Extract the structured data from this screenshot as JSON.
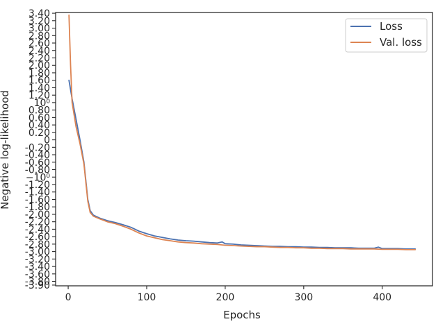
{
  "chart_data": {
    "type": "line",
    "xlabel": "Epochs",
    "ylabel": "Negative log-likelihood",
    "yscale": "symlog",
    "xlim": [
      -16,
      464
    ],
    "ylim": [
      -3.92,
      3.42
    ],
    "grid": false,
    "legend_position": "top-right",
    "x_ticks": [
      0,
      100,
      200,
      300,
      400
    ],
    "x_tick_labels": [
      "0",
      "100",
      "200",
      "300",
      "400"
    ],
    "y_ticks": [
      -3.9,
      -3.8,
      -3.6,
      -3.4,
      -3.2,
      -3.0,
      -2.8,
      -2.6,
      -2.4,
      -2.2,
      -2.0,
      -1.8,
      -1.6,
      -1.4,
      -1.2,
      -1.0,
      -0.8,
      -0.6,
      -0.4,
      -0.2,
      0,
      0.2,
      0.4,
      0.6,
      0.8,
      1.0,
      1.2,
      1.4,
      1.6,
      1.8,
      2.0,
      2.2,
      2.4,
      2.6,
      2.8,
      3.0,
      3.2,
      3.4
    ],
    "y_tick_labels": [
      "-3.90",
      "-3.80",
      "-3.60",
      "-3.40",
      "-3.20",
      "-3.00",
      "-2.80",
      "-2.60",
      "-2.40",
      "-2.20",
      "-2.00",
      "-1.80",
      "-1.60",
      "-1.40",
      "-1.20",
      "−10⁰",
      "-0.80",
      "-0.60",
      "-0.40",
      "-0.20",
      "0",
      "0.20",
      "0.40",
      "0.60",
      "0.80",
      "10⁰",
      "1.20",
      "1.40",
      "1.60",
      "1.80",
      "2.00",
      "2.20",
      "2.40",
      "2.60",
      "2.80",
      "3.00",
      "3.20",
      "3.40"
    ],
    "series": [
      {
        "name": "Loss",
        "color": "#4c72b0",
        "x": [
          1,
          5,
          10,
          15,
          20,
          25,
          28,
          32,
          40,
          50,
          60,
          70,
          80,
          90,
          100,
          110,
          120,
          130,
          140,
          150,
          160,
          170,
          180,
          190,
          196,
          200,
          210,
          220,
          230,
          240,
          250,
          260,
          270,
          280,
          290,
          300,
          310,
          320,
          330,
          340,
          350,
          360,
          370,
          380,
          390,
          395,
          400,
          410,
          420,
          430,
          442
        ],
        "y": [
          1.6,
          1.1,
          0.55,
          0.0,
          -0.6,
          -1.6,
          -1.9,
          -2.02,
          -2.1,
          -2.17,
          -2.22,
          -2.28,
          -2.35,
          -2.45,
          -2.52,
          -2.58,
          -2.62,
          -2.66,
          -2.69,
          -2.71,
          -2.72,
          -2.74,
          -2.76,
          -2.77,
          -2.74,
          -2.79,
          -2.8,
          -2.82,
          -2.83,
          -2.84,
          -2.85,
          -2.86,
          -2.86,
          -2.87,
          -2.87,
          -2.88,
          -2.88,
          -2.89,
          -2.89,
          -2.9,
          -2.9,
          -2.9,
          -2.91,
          -2.91,
          -2.91,
          -2.88,
          -2.92,
          -2.92,
          -2.92,
          -2.93,
          -2.93
        ]
      },
      {
        "name": "Val. loss",
        "color": "#dd8452",
        "x": [
          1,
          3,
          5,
          10,
          15,
          20,
          25,
          28,
          32,
          40,
          50,
          60,
          70,
          80,
          90,
          100,
          110,
          120,
          130,
          140,
          150,
          160,
          170,
          180,
          190,
          200,
          210,
          220,
          230,
          240,
          250,
          260,
          270,
          280,
          290,
          300,
          310,
          320,
          330,
          340,
          350,
          360,
          370,
          380,
          390,
          400,
          410,
          420,
          430,
          442
        ],
        "y": [
          3.35,
          2.0,
          1.0,
          0.35,
          -0.1,
          -0.65,
          -1.65,
          -1.95,
          -2.05,
          -2.12,
          -2.2,
          -2.25,
          -2.32,
          -2.4,
          -2.5,
          -2.58,
          -2.63,
          -2.68,
          -2.71,
          -2.74,
          -2.76,
          -2.77,
          -2.79,
          -2.8,
          -2.81,
          -2.83,
          -2.84,
          -2.85,
          -2.86,
          -2.87,
          -2.87,
          -2.88,
          -2.89,
          -2.89,
          -2.9,
          -2.9,
          -2.91,
          -2.91,
          -2.92,
          -2.92,
          -2.92,
          -2.93,
          -2.93,
          -2.93,
          -2.93,
          -2.94,
          -2.94,
          -2.94,
          -2.95,
          -2.95
        ]
      }
    ]
  }
}
